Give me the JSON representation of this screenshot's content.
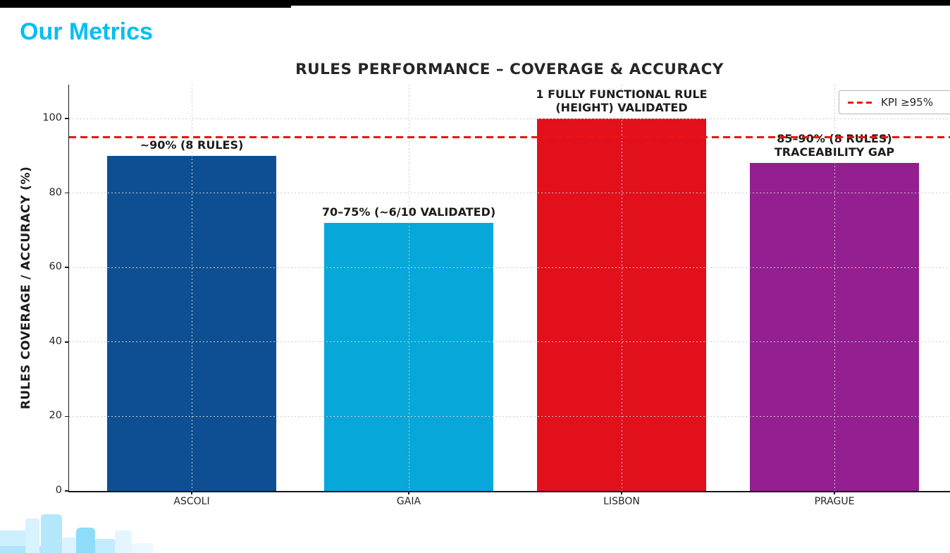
{
  "page": {
    "title": "Our Metrics",
    "accent_color": "#00BFF3"
  },
  "chart_data": {
    "type": "bar",
    "title": "RULES PERFORMANCE – COVERAGE & ACCURACY",
    "ylabel": "RULES COVERAGE / ACCURACY (%)",
    "xlabel": "",
    "categories": [
      "ASCOLI",
      "GAIA",
      "LISBON",
      "PRAGUE"
    ],
    "values": [
      90,
      72,
      100,
      88
    ],
    "bar_colors": [
      "#0E4F93",
      "#07A7DA",
      "#E1101B",
      "#931F90"
    ],
    "yticks": [
      0,
      20,
      40,
      60,
      80,
      100
    ],
    "ylim": [
      0,
      105
    ],
    "grid": true,
    "legend_position": "upper right",
    "reference_line": {
      "value": 95,
      "style": "dashed",
      "color": "#EE1212",
      "label": "KPI ≥95%"
    },
    "annotations": [
      {
        "category": "ASCOLI",
        "lines": [
          "~90% (8 RULES)"
        ]
      },
      {
        "category": "GAIA",
        "lines": [
          "70–75% (~6/10 VALIDATED)"
        ]
      },
      {
        "category": "LISBON",
        "lines": [
          "1 FULLY FUNCTIONAL RULE",
          "(HEIGHT) VALIDATED"
        ]
      },
      {
        "category": "PRAGUE",
        "lines": [
          "85–90% (8 RULES)",
          "TRACEABILITY GAP"
        ]
      }
    ],
    "colors": {
      "text": "#262626",
      "grid": "#cccccc",
      "axis": "#1a1a1a"
    }
  }
}
